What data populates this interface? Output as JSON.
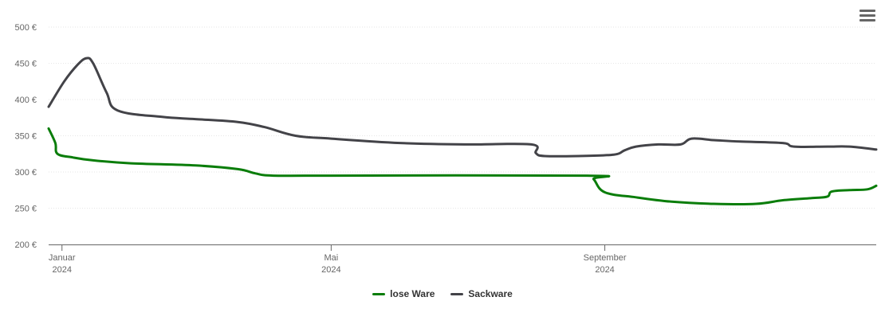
{
  "menu": {
    "icon": "hamburger-menu-icon"
  },
  "chart_data": {
    "type": "line",
    "title": "",
    "xlabel": "",
    "ylabel": "",
    "ylim": [
      200,
      500
    ],
    "yticks": [
      200,
      250,
      300,
      350,
      400,
      450,
      500
    ],
    "ytick_labels": [
      "200 €",
      "250 €",
      "300 €",
      "350 €",
      "400 €",
      "450 €",
      "500 €"
    ],
    "xlim": [
      "2023-12-26",
      "2025-01-01"
    ],
    "xticks": [
      {
        "date": "2024-01-01",
        "line1": "Januar",
        "line2": "2024"
      },
      {
        "date": "2024-05-01",
        "line1": "Mai",
        "line2": "2024"
      },
      {
        "date": "2024-09-01",
        "line1": "September",
        "line2": "2024"
      }
    ],
    "grid": true,
    "legend_position": "bottom-center",
    "series": [
      {
        "name": "lose Ware",
        "color": "#0a7d0a",
        "points": [
          [
            "2023-12-26",
            360
          ],
          [
            "2023-12-29",
            340
          ],
          [
            "2023-12-30",
            325
          ],
          [
            "2024-01-06",
            320
          ],
          [
            "2024-01-15",
            316
          ],
          [
            "2024-02-01",
            312
          ],
          [
            "2024-03-01",
            309
          ],
          [
            "2024-03-20",
            304
          ],
          [
            "2024-03-28",
            298
          ],
          [
            "2024-04-05",
            295
          ],
          [
            "2024-05-01",
            295
          ],
          [
            "2024-08-24",
            295
          ],
          [
            "2024-08-27",
            290
          ],
          [
            "2024-09-01",
            272
          ],
          [
            "2024-09-15",
            265
          ],
          [
            "2024-10-01",
            259
          ],
          [
            "2024-10-20",
            256
          ],
          [
            "2024-11-08",
            256
          ],
          [
            "2024-11-20",
            261
          ],
          [
            "2024-12-03",
            264
          ],
          [
            "2024-12-10",
            266
          ],
          [
            "2024-12-12",
            273
          ],
          [
            "2024-12-20",
            275
          ],
          [
            "2024-12-28",
            276
          ],
          [
            "2025-01-01",
            281
          ]
        ]
      },
      {
        "name": "Sackware",
        "color": "#434348",
        "points": [
          [
            "2023-12-26",
            390
          ],
          [
            "2024-01-02",
            425
          ],
          [
            "2024-01-08",
            448
          ],
          [
            "2024-01-12",
            457
          ],
          [
            "2024-01-15",
            450
          ],
          [
            "2024-01-21",
            410
          ],
          [
            "2024-01-26",
            385
          ],
          [
            "2024-02-15",
            376
          ],
          [
            "2024-03-01",
            373
          ],
          [
            "2024-03-20",
            369
          ],
          [
            "2024-04-01",
            362
          ],
          [
            "2024-04-15",
            350
          ],
          [
            "2024-05-01",
            346
          ],
          [
            "2024-06-01",
            340
          ],
          [
            "2024-07-01",
            338
          ],
          [
            "2024-07-30",
            338
          ],
          [
            "2024-08-01",
            326
          ],
          [
            "2024-08-05",
            322
          ],
          [
            "2024-08-20",
            322
          ],
          [
            "2024-09-05",
            324
          ],
          [
            "2024-09-10",
            330
          ],
          [
            "2024-09-15",
            335
          ],
          [
            "2024-09-25",
            338
          ],
          [
            "2024-10-05",
            338
          ],
          [
            "2024-10-10",
            346
          ],
          [
            "2024-10-20",
            344
          ],
          [
            "2024-11-01",
            342
          ],
          [
            "2024-11-20",
            340
          ],
          [
            "2024-11-25",
            335
          ],
          [
            "2024-12-10",
            335
          ],
          [
            "2024-12-20",
            335
          ],
          [
            "2025-01-01",
            331
          ]
        ]
      }
    ]
  }
}
